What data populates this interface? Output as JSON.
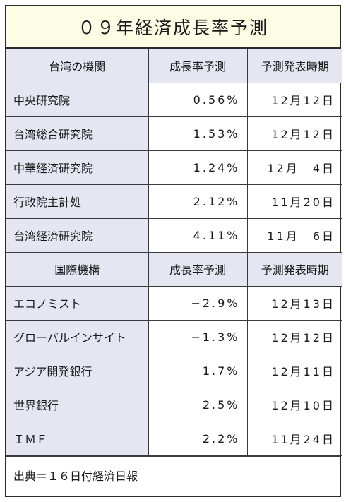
{
  "title": "０９年経済成長率予測",
  "taiwan_header": {
    "col1": "台湾の機関",
    "col2": "成長率予測",
    "col3": "予測発表時期"
  },
  "taiwan_rows": [
    {
      "name": "中央研究院",
      "rate": "0.56%",
      "date": "12月12日"
    },
    {
      "name": "台湾総合研究院",
      "rate": "1.53%",
      "date": "12月12日"
    },
    {
      "name": "中華経済研究院",
      "rate": "1.24%",
      "date": "12月　4日"
    },
    {
      "name": "行政院主計処",
      "rate": "2.12%",
      "date": "11月20日"
    },
    {
      "name": "台湾経済研究院",
      "rate": "4.11%",
      "date": "11月　6日"
    }
  ],
  "intl_header": {
    "col1": "国際機構",
    "col2": "成長率予測",
    "col3": "予測発表時期"
  },
  "intl_rows": [
    {
      "name": "エコノミスト",
      "rate": "−2.9%",
      "date": "12月13日"
    },
    {
      "name": "グローバルインサイト",
      "rate": "−1.3%",
      "date": "12月12日"
    },
    {
      "name": "アジア開発銀行",
      "rate": "1.7%",
      "date": "12月11日"
    },
    {
      "name": "世界銀行",
      "rate": "2.5%",
      "date": "12月10日"
    },
    {
      "name": "ＩＭＦ",
      "rate": "2.2%",
      "date": "11月24日"
    }
  ],
  "footer": "出典＝１６日付経済日報"
}
